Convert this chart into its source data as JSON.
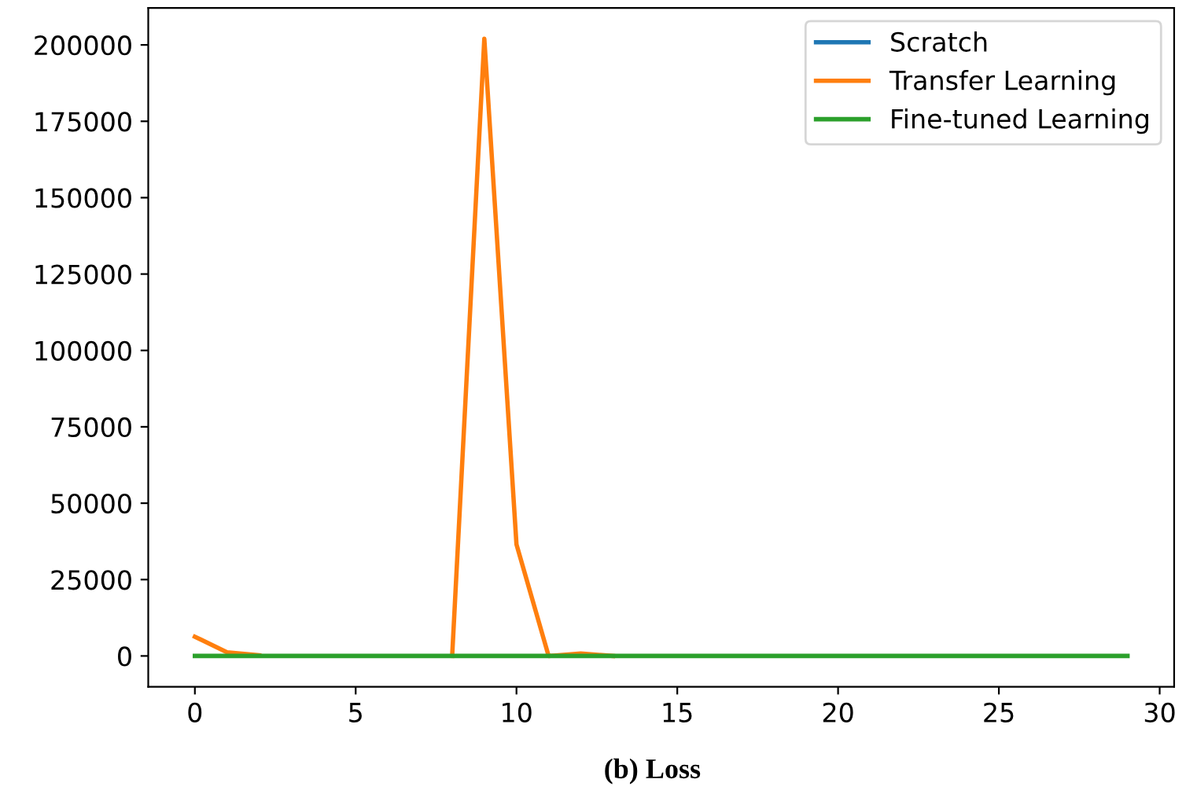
{
  "chart_data": {
    "type": "line",
    "title": "(b) Loss",
    "x": [
      0,
      1,
      2,
      3,
      4,
      5,
      6,
      7,
      8,
      9,
      10,
      11,
      12,
      13,
      14,
      15,
      16,
      17,
      18,
      19,
      20,
      21,
      22,
      23,
      24,
      25,
      26,
      27,
      28,
      29
    ],
    "series": [
      {
        "name": "Scratch",
        "color": "#1f77b4",
        "values": [
          null,
          null,
          null,
          null,
          null,
          null,
          null,
          null,
          null,
          null,
          null,
          null,
          null,
          null,
          null,
          null,
          null,
          null,
          null,
          null,
          null,
          null,
          null,
          null,
          null,
          null,
          null,
          null,
          null,
          null
        ]
      },
      {
        "name": "Transfer Learning",
        "color": "#ff7f0e",
        "values": [
          6300,
          1200,
          200,
          null,
          null,
          null,
          null,
          null,
          0,
          202000,
          36500,
          0,
          800,
          0,
          null,
          null,
          null,
          null,
          null,
          null,
          null,
          null,
          null,
          null,
          null,
          null,
          null,
          null,
          null,
          null
        ]
      },
      {
        "name": "Fine-tuned Learning",
        "color": "#2ca02c",
        "values": [
          0,
          0,
          0,
          0,
          0,
          0,
          0,
          0,
          0,
          0,
          0,
          0,
          0,
          0,
          0,
          0,
          0,
          0,
          0,
          0,
          0,
          0,
          0,
          0,
          0,
          0,
          0,
          0,
          0,
          0
        ]
      }
    ],
    "xlim": [
      -1.45,
      30.45
    ],
    "ylim": [
      -10100,
      212100
    ],
    "xticks": [
      0,
      5,
      10,
      15,
      20,
      25,
      30
    ],
    "yticks": [
      0,
      25000,
      50000,
      75000,
      100000,
      125000,
      150000,
      175000,
      200000
    ],
    "grid": false,
    "legend": "top right"
  }
}
